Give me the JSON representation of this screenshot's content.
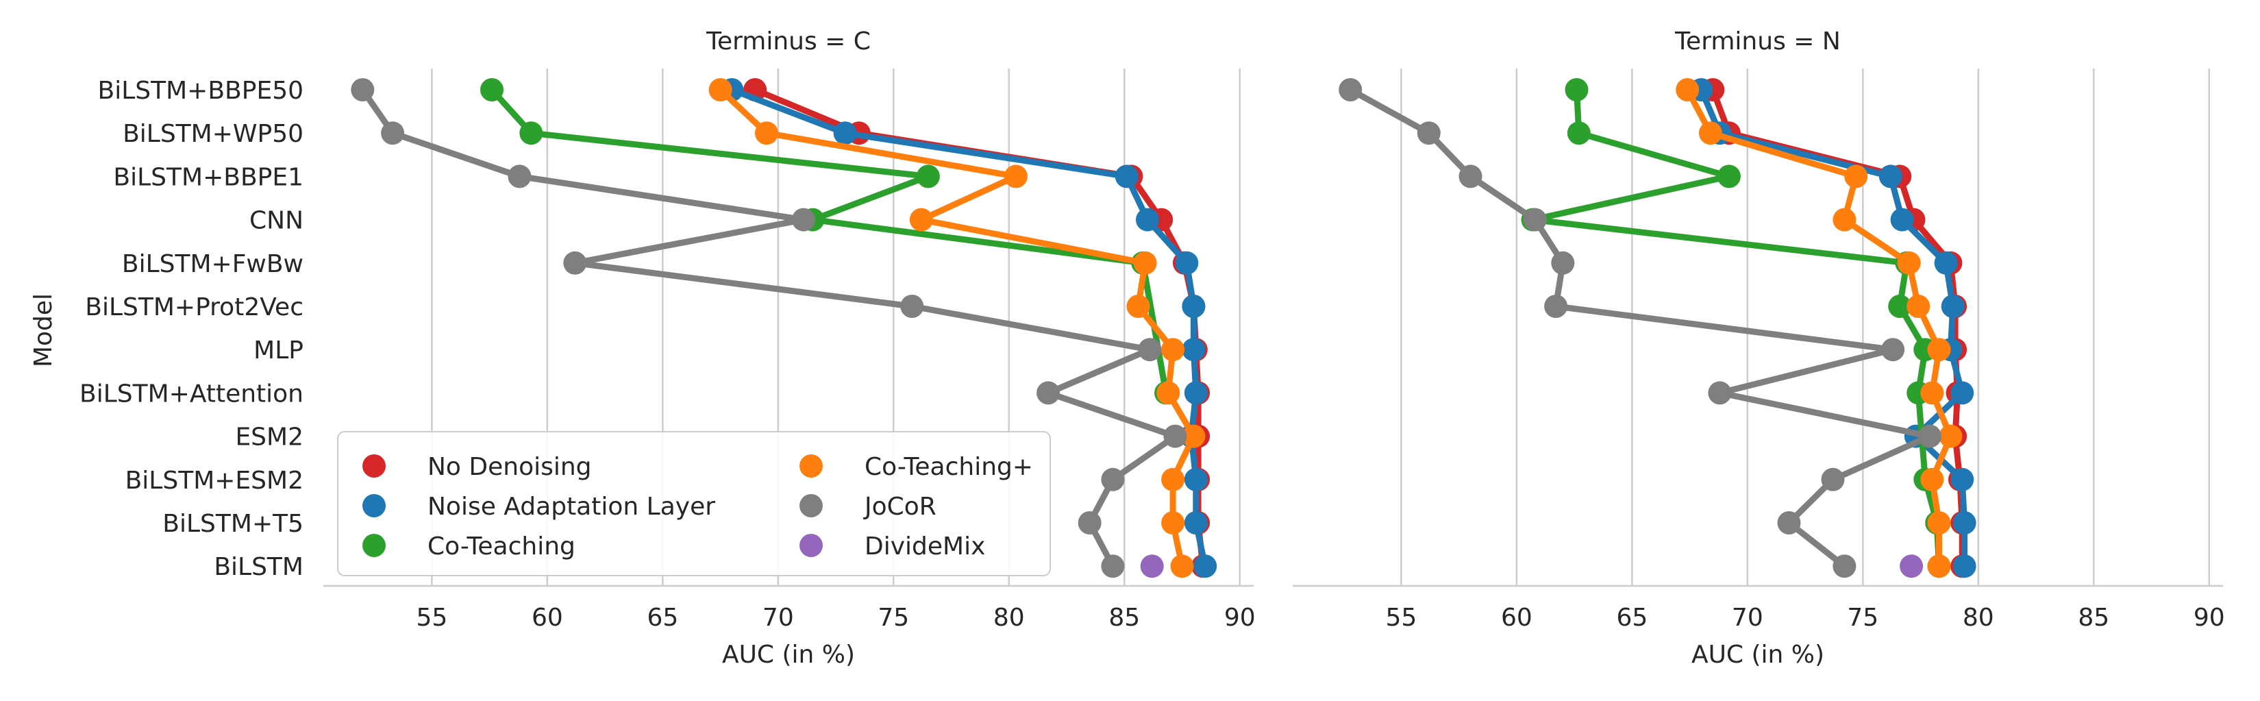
{
  "chart_data": {
    "type": "pointplot",
    "ylabel": "Model",
    "xlabel": "AUC (in %)",
    "categories": [
      "BiLSTM+BBPE50",
      "BiLSTM+WP50",
      "BiLSTM+BBPE1",
      "CNN",
      "BiLSTM+FwBw",
      "BiLSTM+Prot2Vec",
      "MLP",
      "BiLSTM+Attention",
      "ESM2",
      "BiLSTM+ESM2",
      "BiLSTM+T5",
      "BiLSTM"
    ],
    "xticks": [
      55,
      60,
      65,
      70,
      75,
      80,
      85,
      90
    ],
    "xlim": [
      50.3,
      90.6
    ],
    "grid": "vertical",
    "legend_location": "lower-left (first panel)",
    "legend": [
      {
        "name": "No Denoising",
        "color": "#d62728"
      },
      {
        "name": "Noise Adaptation Layer",
        "color": "#1f77b4"
      },
      {
        "name": "Co-Teaching",
        "color": "#2ca02c"
      },
      {
        "name": "Co-Teaching+",
        "color": "#ff7f0e"
      },
      {
        "name": "JoCoR",
        "color": "#7f7f7f"
      },
      {
        "name": "DivideMix",
        "color": "#9467bd"
      }
    ],
    "panels": [
      {
        "title": "Terminus = C",
        "series": [
          {
            "name": "No Denoising",
            "color": "#d62728",
            "values": [
              69.0,
              73.5,
              85.3,
              86.6,
              87.6,
              88.0,
              88.1,
              88.2,
              88.2,
              88.2,
              88.2,
              88.4
            ]
          },
          {
            "name": "Noise Adaptation Layer",
            "color": "#1f77b4",
            "values": [
              68.0,
              72.9,
              85.1,
              86.0,
              87.7,
              88.0,
              88.0,
              88.1,
              87.9,
              88.1,
              88.1,
              88.5
            ]
          },
          {
            "name": "Co-Teaching",
            "color": "#2ca02c",
            "values": [
              57.6,
              59.3,
              76.5,
              71.5,
              85.8,
              null,
              null,
              86.8,
              null,
              null,
              null,
              null
            ]
          },
          {
            "name": "Co-Teaching+",
            "color": "#ff7f0e",
            "values": [
              67.5,
              69.5,
              80.3,
              76.2,
              85.9,
              85.6,
              87.1,
              86.9,
              88.0,
              87.1,
              87.1,
              87.5
            ]
          },
          {
            "name": "JoCoR",
            "color": "#7f7f7f",
            "values": [
              52.0,
              53.3,
              58.8,
              71.1,
              61.2,
              75.8,
              86.1,
              81.7,
              87.2,
              84.5,
              83.5,
              84.5
            ]
          },
          {
            "name": "DivideMix",
            "color": "#9467bd",
            "values": [
              null,
              null,
              null,
              null,
              null,
              null,
              null,
              null,
              null,
              null,
              null,
              86.2
            ]
          }
        ]
      },
      {
        "title": "Terminus = N",
        "series": [
          {
            "name": "No Denoising",
            "color": "#d62728",
            "values": [
              68.5,
              69.2,
              76.6,
              77.2,
              78.8,
              79.0,
              79.0,
              79.1,
              79.0,
              79.2,
              79.3,
              79.3
            ]
          },
          {
            "name": "Noise Adaptation Layer",
            "color": "#1f77b4",
            "values": [
              68.0,
              68.8,
              76.2,
              76.7,
              78.6,
              78.9,
              78.8,
              79.3,
              77.3,
              79.3,
              79.4,
              79.4
            ]
          },
          {
            "name": "Co-Teaching",
            "color": "#2ca02c",
            "values": [
              62.6,
              62.7,
              69.2,
              60.7,
              76.9,
              76.6,
              77.7,
              77.4,
              null,
              77.7,
              78.2,
              78.3
            ]
          },
          {
            "name": "Co-Teaching+",
            "color": "#ff7f0e",
            "values": [
              67.4,
              68.4,
              74.7,
              74.2,
              77.0,
              77.4,
              78.3,
              78.0,
              78.8,
              78.0,
              78.3,
              78.3
            ]
          },
          {
            "name": "JoCoR",
            "color": "#7f7f7f",
            "values": [
              52.8,
              56.2,
              58.0,
              60.8,
              62.0,
              61.7,
              76.3,
              68.8,
              77.9,
              73.7,
              71.8,
              74.2
            ]
          },
          {
            "name": "DivideMix",
            "color": "#9467bd",
            "values": [
              null,
              null,
              null,
              null,
              null,
              null,
              null,
              null,
              null,
              null,
              null,
              77.1
            ]
          }
        ]
      }
    ]
  }
}
